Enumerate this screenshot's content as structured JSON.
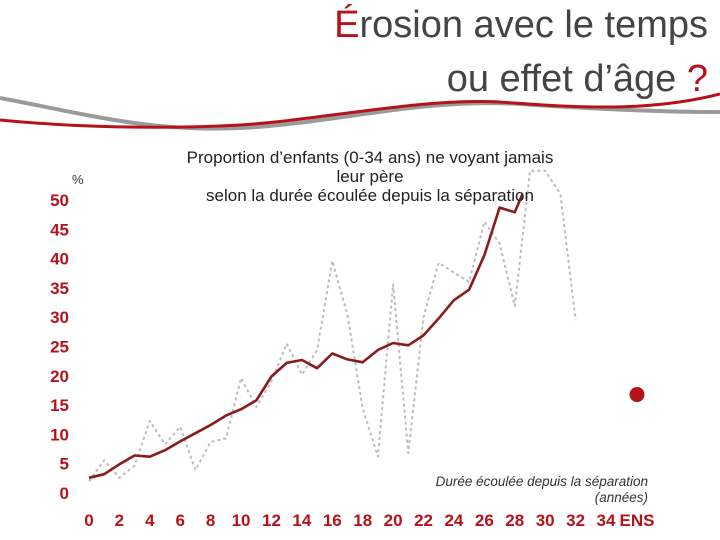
{
  "title": {
    "accent_letter": "É",
    "line1_rest": "rosion avec le temps",
    "line2_main": "ou effet d’âge ",
    "line2_accent": "?"
  },
  "colors": {
    "accent": "#b5121b",
    "main_line": "#8b1a1a",
    "dotted_line": "#bdbdbd",
    "tick_labels": "#b5121b",
    "decor_grey": "#9a9a9a"
  },
  "chart_data": {
    "type": "line",
    "title": "Proportion d’enfants (0-34 ans) ne voyant jamais",
    "title_lines": [
      "Proportion d’enfants (0-34 ans) ne voyant jamais",
      "leur père",
      "selon la durée écoulée depuis la séparation"
    ],
    "ylabel": "%",
    "xlabel_lines": [
      "Durée écoulée depuis la séparation",
      "(années)"
    ],
    "ylim": [
      0,
      50
    ],
    "xlim": [
      0,
      34
    ],
    "yticks": [
      0,
      5,
      10,
      15,
      20,
      25,
      30,
      35,
      40,
      45,
      50
    ],
    "xticks": [
      "0",
      "2",
      "4",
      "6",
      "8",
      "10",
      "12",
      "14",
      "16",
      "18",
      "20",
      "22",
      "24",
      "26",
      "28",
      "30",
      "32",
      "34",
      "ENS"
    ],
    "grid": false,
    "series": [
      {
        "style": "solid",
        "x": [
          0,
          1,
          2,
          3,
          4,
          5,
          6,
          7,
          8,
          9,
          10,
          11,
          12,
          13,
          14,
          15,
          16,
          17,
          18,
          19,
          20,
          21,
          22,
          23,
          24,
          25,
          26,
          27,
          28,
          28.5
        ],
        "values": [
          2.6,
          3.2,
          4.9,
          6.4,
          6.2,
          7.3,
          8.8,
          10.2,
          11.6,
          13.2,
          14.3,
          15.8,
          19.9,
          22.2,
          22.7,
          21.3,
          23.8,
          22.8,
          22.3,
          24.4,
          25.6,
          25.2,
          26.9,
          29.8,
          32.9,
          34.7,
          40.6,
          48.7,
          47.9,
          51.0
        ]
      },
      {
        "style": "dotted",
        "x": [
          0,
          1,
          2,
          3,
          4,
          5,
          6,
          7,
          8,
          9,
          10,
          11,
          12,
          13,
          14,
          15,
          16,
          17,
          18,
          19,
          20,
          21,
          22,
          23,
          24,
          25,
          26,
          27,
          28,
          29,
          30,
          31,
          32
        ],
        "values": [
          2.0,
          5.6,
          2.6,
          4.7,
          12.3,
          8.3,
          11.3,
          3.9,
          8.7,
          9.3,
          19.6,
          14.7,
          19.1,
          25.5,
          20.2,
          24.4,
          39.6,
          30.4,
          14.4,
          6.2,
          35.6,
          6.8,
          30.0,
          39.3,
          37.6,
          36.0,
          46.3,
          42.6,
          31.9,
          55.0,
          55.0,
          51.0,
          29.5
        ]
      }
    ],
    "ens_point": {
      "x": "ENS",
      "value": 16.8
    }
  }
}
